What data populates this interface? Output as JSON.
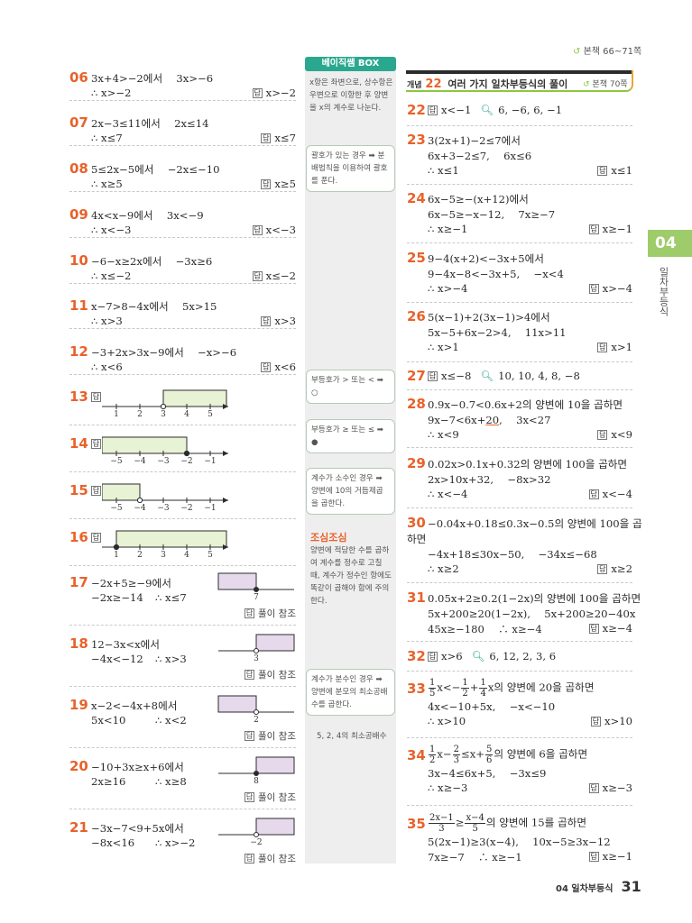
{
  "header": {
    "page_ref": "본책 66~71쪽"
  },
  "concept": {
    "label": "개념",
    "number": "22",
    "title": "여러 가지 일차부등식의 풀이",
    "ref": "본책 70쪽"
  },
  "side_tab": {
    "number": "04",
    "title": "일차부등식"
  },
  "footer": {
    "chapter": "04 일차부등식",
    "page": "31"
  },
  "basic_box": {
    "title": "베이직쌤 BOX",
    "note1": "x항은 좌변으로, 상수항은 우변으로 이항한 후 양변을 x의 계수로 나눈다.",
    "note2": "괄호가 있는 경우 ➡ 분배법칙을 이용하여 괄호를 푼다.",
    "note3": "부등호가 > 또는 < ➡ ○",
    "note4": "부등호가 ≥ 또는 ≤ ➡ ●",
    "note5": "계수가 소수인 경우 ➡ 양변에 10의 거듭제곱을 곱한다.",
    "note6_title": "조심조심",
    "note6": "양변에 적당한 수를 곱하여 계수를 정수로 고칠 때, 계수가 정수인 항에도 똑같이 곱해야 함에 주의한다.",
    "note7": "계수가 분수인 경우 ➡ 양변에 분모의 최소공배수를 곱한다.",
    "note8": "5, 2, 4의 최소공배수"
  },
  "answer_mark": "답",
  "see_solution": "풀이 참조",
  "left_problems": [
    {
      "num": "06",
      "line1": "3x+4>−2에서　 3x>−6",
      "line2": "∴ x>−2",
      "answer": "x>−2"
    },
    {
      "num": "07",
      "line1": "2x−3≤11에서　 2x≤14",
      "line2": "∴ x≤7",
      "answer": "x≤7"
    },
    {
      "num": "08",
      "line1": "5≤2x−5에서　 −2x≤−10",
      "line2": "∴ x≥5",
      "answer": "x≥5"
    },
    {
      "num": "09",
      "line1": "4x<x−9에서　 3x<−9",
      "line2": "∴ x<−3",
      "answer": "x<−3"
    },
    {
      "num": "10",
      "line1": "−6−x≥2x에서　 −3x≥6",
      "line2": "∴ x≤−2",
      "answer": "x≤−2"
    },
    {
      "num": "11",
      "line1": "x−7>8−4x에서　 5x>15",
      "line2": "∴ x>3",
      "answer": "x>3"
    },
    {
      "num": "12",
      "line1": "−3+2x>3x−9에서　 −x>−6",
      "line2": "∴ x<6",
      "answer": "x<6"
    }
  ],
  "numberline_problems": [
    {
      "num": "13",
      "ticks": [
        "1",
        "2",
        "3",
        "4",
        "5"
      ],
      "point": "3",
      "closed": false,
      "direction": "right"
    },
    {
      "num": "14",
      "ticks": [
        "−5",
        "−4",
        "−3",
        "−2",
        "−1"
      ],
      "point": "−2",
      "closed": true,
      "direction": "left"
    },
    {
      "num": "15",
      "ticks": [
        "−5",
        "−4",
        "−3",
        "−2",
        "−1"
      ],
      "point": "−4",
      "closed": false,
      "direction": "left"
    },
    {
      "num": "16",
      "ticks": [
        "1",
        "2",
        "3",
        "4",
        "5"
      ],
      "point": "1",
      "closed": true,
      "direction": "right"
    }
  ],
  "graph_problems": [
    {
      "num": "17",
      "line1": "−2x+5≥−9에서",
      "line2a": "−2x≥−14",
      "line2b": "∴ x≤7",
      "point": "7",
      "closed": true,
      "direction": "left"
    },
    {
      "num": "18",
      "line1": "12−3x<x에서",
      "line2a": "−4x<−12",
      "line2b": "∴ x>3",
      "point": "3",
      "closed": false,
      "direction": "right"
    },
    {
      "num": "19",
      "line1": "x−2<−4x+8에서",
      "line2a": "5x<10",
      "line2b": "∴ x<2",
      "point": "2",
      "closed": false,
      "direction": "left"
    },
    {
      "num": "20",
      "line1": "−10+3x≥x+6에서",
      "line2a": "2x≥16",
      "line2b": "∴ x≥8",
      "point": "8",
      "closed": true,
      "direction": "right"
    },
    {
      "num": "21",
      "line1": "−3x−7<9+5x에서",
      "line2a": "−8x<16",
      "line2b": "∴ x>−2",
      "point": "−2",
      "closed": false,
      "direction": "right"
    }
  ],
  "right_problems": {
    "p22": {
      "num": "22",
      "answer": "x<−1",
      "check": "6, −6, 6, −1"
    },
    "p23": {
      "num": "23",
      "line1": "3(2x+1)−2≤7에서",
      "line2": "6x+3−2≤7,　 6x≤6",
      "line3": "∴ x≤1",
      "answer": "x≤1"
    },
    "p24": {
      "num": "24",
      "line1": "6x−5≥−(x+12)에서",
      "line2": "6x−5≥−x−12,　 7x≥−7",
      "line3": "∴ x≥−1",
      "answer": "x≥−1"
    },
    "p25": {
      "num": "25",
      "line1": "9−4(x+2)<−3x+5에서",
      "line2": "9−4x−8<−3x+5,　 −x<4",
      "line3": "∴ x>−4",
      "answer": "x>−4"
    },
    "p26": {
      "num": "26",
      "line1": "5(x−1)+2(3x−1)>4에서",
      "line2": "5x−5+6x−2>4,　 11x>11",
      "line3": "∴ x>1",
      "answer": "x>1"
    },
    "p27": {
      "num": "27",
      "answer": "x≤−8",
      "check": "10, 10, 4, 8, −8"
    },
    "p28": {
      "num": "28",
      "line1": "0.9x−0.7<0.6x+2의 양변에 10을 곱하면",
      "line2a": "9x−7<6x+",
      "line2b": "20",
      "line2c": ",　 3x<27",
      "line3": "∴ x<9",
      "answer": "x<9"
    },
    "p29": {
      "num": "29",
      "line1": "0.02x>0.1x+0.32의 양변에 100을 곱하면",
      "line2": "2x>10x+32,　 −8x>32",
      "line3": "∴ x<−4",
      "answer": "x<−4"
    },
    "p30": {
      "num": "30",
      "line1": "−0.04x+0.18≤0.3x−0.5의 양변에 100을 곱",
      "line1b": "하면",
      "line2": "−4x+18≤30x−50,　 −34x≤−68",
      "line3": "∴ x≥2",
      "answer": "x≥2"
    },
    "p31": {
      "num": "31",
      "line1": "0.05x+2≥0.2(1−2x)의 양변에 100을 곱하면",
      "line2": "5x+200≥20(1−2x),　 5x+200≥20−40x",
      "line3": "45x≥−180　 ∴ x≥−4",
      "answer": "x≥−4"
    },
    "p32": {
      "num": "32",
      "answer": "x>6",
      "check": "6, 12, 2, 3, 6"
    },
    "p33": {
      "num": "33",
      "frac1_n": "1",
      "frac1_d": "5",
      "mid": "x<−",
      "frac2_n": "1",
      "frac2_d": "2",
      "plus": "+",
      "frac3_n": "1",
      "frac3_d": "4",
      "tail": "x의 양변에 20을 곱하면",
      "line2": "4x<−10+5x,　 −x<−10",
      "line3": "∴ x>10",
      "answer": "x>10"
    },
    "p34": {
      "num": "34",
      "frac1_n": "1",
      "frac1_d": "2",
      "a": "x−",
      "frac2_n": "2",
      "frac2_d": "3",
      "b": "≤x+",
      "frac3_n": "5",
      "frac3_d": "6",
      "tail": "의 양변에 6을 곱하면",
      "line2": "3x−4≤6x+5,　 −3x≤9",
      "line3": "∴ x≥−3",
      "answer": "x≥−3"
    },
    "p35": {
      "num": "35",
      "frac1_n": "2x−1",
      "frac1_d": "3",
      "a": "≥",
      "frac2_n": "x−4",
      "frac2_d": "5",
      "tail": "의 양변에 15를 곱하면",
      "line2": "5(2x−1)≥3(x−4),　 10x−5≥3x−12",
      "line3": "7x≥−7　 ∴ x≥−1",
      "answer": "x≥−1"
    }
  },
  "colors": {
    "accent": "#e8622a",
    "green": "#8dc63f",
    "teal": "#2aa88f",
    "highlight": "#e8f2d4",
    "graph_fill": "#e6d9ec",
    "tab": "#9fcc6a"
  }
}
